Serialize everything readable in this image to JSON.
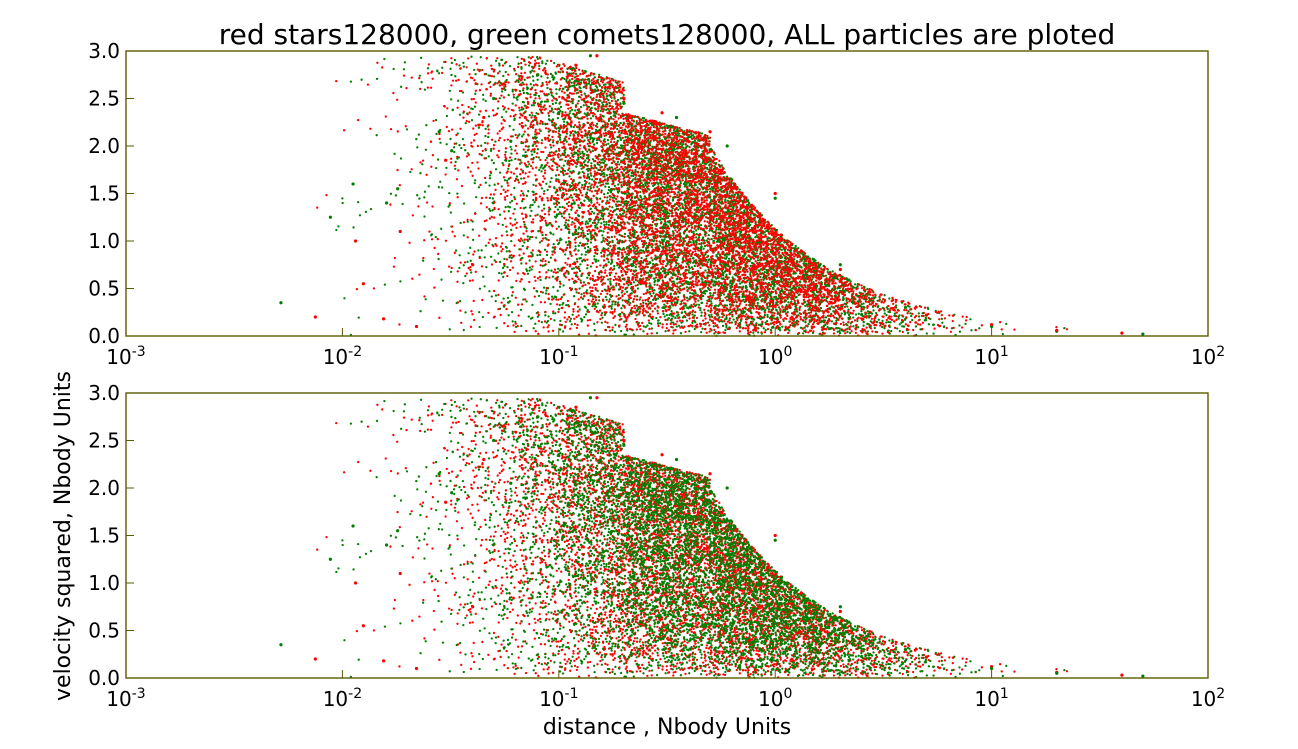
{
  "chart_data": {
    "type": "scatter",
    "title": "red stars128000, green comets128000, ALL particles are ploted",
    "xlabel": "distance , Nbody Units",
    "ylabel": "velocity squared, Nbody Units",
    "xscale": "log",
    "xlim": [
      0.001,
      100
    ],
    "ylim": [
      0.0,
      3.0
    ],
    "x_ticks": [
      {
        "base": "10",
        "exp": "-3"
      },
      {
        "base": "10",
        "exp": "-2"
      },
      {
        "base": "10",
        "exp": "-1"
      },
      {
        "base": "10",
        "exp": "0"
      },
      {
        "base": "10",
        "exp": "1"
      },
      {
        "base": "10",
        "exp": "2"
      }
    ],
    "y_ticks": [
      "0.0",
      "0.5",
      "1.0",
      "1.5",
      "2.0",
      "2.5",
      "3.0"
    ],
    "grid": false,
    "legend": "none",
    "colors": {
      "stars": "#ff0000",
      "comets": "#008000"
    },
    "panels": [
      {
        "panel": "top",
        "front_series": "stars"
      },
      {
        "panel": "bottom",
        "front_series": "comets"
      }
    ],
    "series": [
      {
        "color": "#ff0000",
        "count": 128000,
        "sample_points": [
          [
            0.0075,
            0.2
          ],
          [
            0.0115,
            1.0
          ],
          [
            0.0125,
            0.55
          ],
          [
            0.0155,
            0.18
          ],
          [
            0.0185,
            1.1
          ],
          [
            0.022,
            0.1
          ],
          [
            0.03,
            1.85
          ],
          [
            0.04,
            0.75
          ],
          [
            0.045,
            2.3
          ],
          [
            0.055,
            2.65
          ],
          [
            0.07,
            2.3
          ],
          [
            0.09,
            1.9
          ],
          [
            0.12,
            2.85
          ],
          [
            0.15,
            2.95
          ],
          [
            0.2,
            2.5
          ],
          [
            0.3,
            2.35
          ],
          [
            0.5,
            2.15
          ],
          [
            1.0,
            1.5
          ],
          [
            2.0,
            0.7
          ],
          [
            5.0,
            0.22
          ],
          [
            10,
            0.12
          ],
          [
            20,
            0.06
          ],
          [
            40,
            0.03
          ]
        ]
      },
      {
        "color": "#008000",
        "count": 128000,
        "sample_points": [
          [
            0.0052,
            0.35
          ],
          [
            0.0088,
            1.25
          ],
          [
            0.0112,
            1.6
          ],
          [
            0.016,
            1.4
          ],
          [
            0.018,
            1.55
          ],
          [
            0.028,
            2.15
          ],
          [
            0.032,
            1.95
          ],
          [
            0.05,
            2.5
          ],
          [
            0.06,
            2.05
          ],
          [
            0.08,
            2.75
          ],
          [
            0.1,
            2.35
          ],
          [
            0.14,
            2.95
          ],
          [
            0.2,
            2.45
          ],
          [
            0.35,
            2.3
          ],
          [
            0.6,
            2.0
          ],
          [
            1.0,
            1.45
          ],
          [
            2.0,
            0.75
          ],
          [
            4.0,
            0.3
          ],
          [
            10,
            0.1
          ],
          [
            20,
            0.05
          ],
          [
            50,
            0.02
          ]
        ]
      }
    ]
  }
}
